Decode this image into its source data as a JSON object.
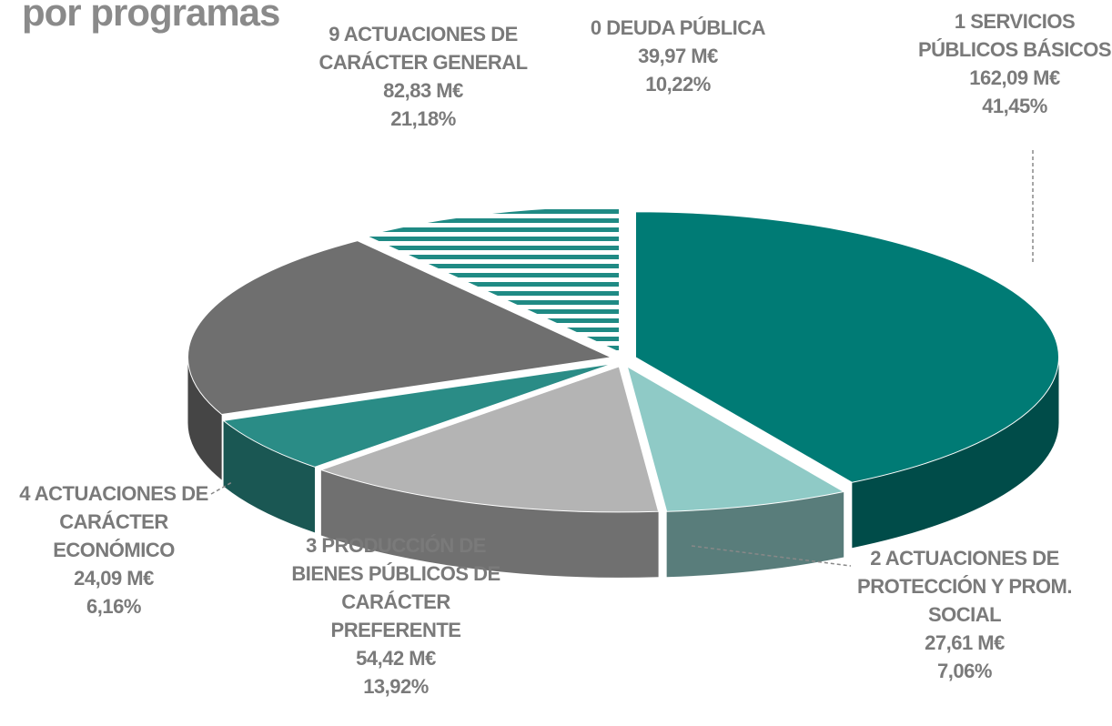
{
  "chart_data": {
    "type": "pie",
    "title": "por programas",
    "categories": [
      "1 SERVICIOS PÚBLICOS BÁSICOS",
      "2 ACTUACIONES DE PROTECCIÓN Y PROM. SOCIAL",
      "3 PRODUCCIÓN DE BIENES PÚBLICOS DE CARÁCTER PREFERENTE",
      "4 ACTUACIONES DE CARÁCTER ECONÓMICO",
      "9 ACTUACIONES DE CARÁCTER GENERAL",
      "0 DEUDA PÚBLICA"
    ],
    "values": [
      162.09,
      27.61,
      54.42,
      24.09,
      82.83,
      39.97
    ],
    "value_labels": [
      "162,09 M€",
      "27,61 M€",
      "54,42 M€",
      "24,09 M€",
      "82,83 M€",
      "39,97 M€"
    ],
    "percentages": [
      41.45,
      7.06,
      13.92,
      6.16,
      21.18,
      10.22
    ],
    "percentage_labels": [
      "41,45%",
      "7,06%",
      "13,92%",
      "6,16%",
      "21,18%",
      "10,22%"
    ],
    "colors": [
      "#007b75",
      "#8fcac6",
      "#b4b4b4",
      "#2a8c86",
      "#6f6f6f",
      "#e8f4f3"
    ]
  }
}
